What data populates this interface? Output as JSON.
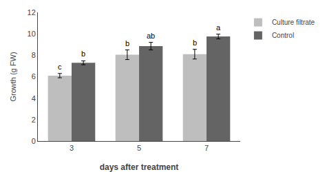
{
  "chart_data": {
    "type": "bar",
    "xlabel": "days after treatment",
    "ylabel": "Growth (g FW)",
    "categories": [
      "3",
      "5",
      "7"
    ],
    "series": [
      {
        "name": "Culture filtrate",
        "color": "#bebebe",
        "values": [
          6.1,
          8.05,
          8.1
        ],
        "errors": [
          0.2,
          0.45,
          0.45
        ],
        "annotations": [
          "c",
          "b",
          "b"
        ]
      },
      {
        "name": "Control",
        "color": "#646464",
        "values": [
          7.3,
          8.85,
          9.75
        ],
        "errors": [
          0.18,
          0.35,
          0.22
        ],
        "annotations": [
          "b",
          "ab",
          "a"
        ]
      }
    ],
    "ylim": [
      0,
      12
    ],
    "yticks": [
      0,
      2,
      4,
      6,
      8,
      10,
      12
    ],
    "grid": false,
    "legend": "right"
  }
}
